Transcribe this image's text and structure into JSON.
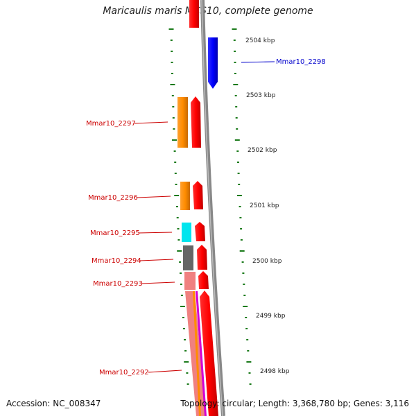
{
  "title": "Maricaulis maris MCS10, complete genome",
  "footer": {
    "accession": "Accession: NC_008347",
    "summary": "Topology: circular; Length: 3,368,780 bp; Genes: 3,116"
  },
  "colors": {
    "tick": "#1a7a1a",
    "backbone": "#888888",
    "red": "#ff0000",
    "orange": "#ff8c00",
    "blue": "#0000ff",
    "cyan": "#00e5ee",
    "gray": "#666666",
    "pink": "#f08080",
    "magenta": "#d400d4",
    "label_red": "#cc0000",
    "label_blue": "#0000cc"
  },
  "kbp_labels": [
    "2504 kbp",
    "2503 kbp",
    "2502 kbp",
    "2501 kbp",
    "2500 kbp",
    "2499 kbp",
    "2498 kbp"
  ],
  "genes": [
    {
      "id": "g2298",
      "label": "Mmar10_2298",
      "color_key": "blue"
    },
    {
      "id": "g2297",
      "label": "Mmar10_2297",
      "color_key": "label_red"
    },
    {
      "id": "g2296",
      "label": "Mmar10_2296",
      "color_key": "label_red"
    },
    {
      "id": "g2295",
      "label": "Mmar10_2295",
      "color_key": "label_red"
    },
    {
      "id": "g2294",
      "label": "Mmar10_2294",
      "color_key": "label_red"
    },
    {
      "id": "g2293",
      "label": "Mmar10_2293",
      "color_key": "label_red"
    },
    {
      "id": "g2292",
      "label": "Mmar10_2292",
      "color_key": "label_red"
    }
  ]
}
